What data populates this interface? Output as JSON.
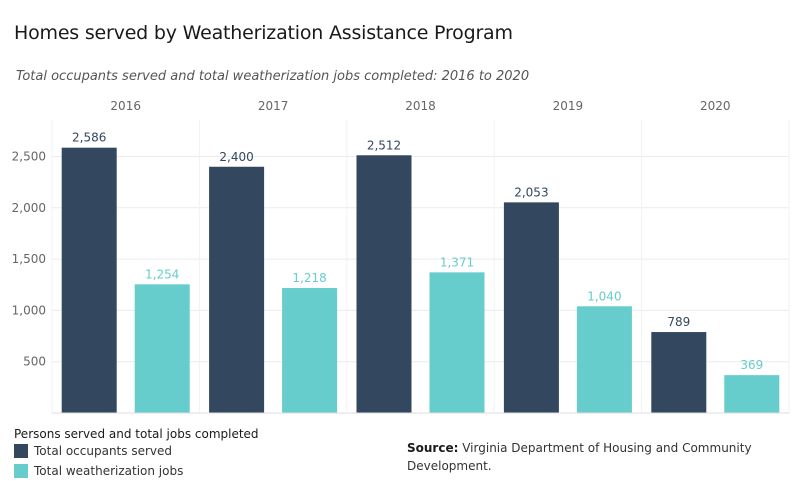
{
  "header": {
    "title": "Homes served by Weatherization Assistance Program",
    "subtitle": "Total occupants served and total weatherization jobs completed: 2016 to 2020"
  },
  "legend": {
    "title": "Persons served and total jobs completed",
    "items": [
      {
        "label": "Total occupants served",
        "color": "#33475f"
      },
      {
        "label": "Total weatherization jobs",
        "color": "#66cccc"
      }
    ]
  },
  "source": {
    "label": "Source:",
    "text": "Virginia Department of Housing and Community Development."
  },
  "chart_data": {
    "type": "bar",
    "categories": [
      "2016",
      "2017",
      "2018",
      "2019",
      "2020"
    ],
    "series": [
      {
        "name": "Total occupants served",
        "values": [
          2586,
          2400,
          2512,
          2053,
          789
        ],
        "labels": [
          "2,586",
          "2,400",
          "2,512",
          "2,053",
          "789"
        ],
        "color": "#33475f",
        "label_color": "#33475f"
      },
      {
        "name": "Total weatherization jobs",
        "values": [
          1254,
          1218,
          1371,
          1040,
          369
        ],
        "labels": [
          "1,254",
          "1,218",
          "1,371",
          "1,040",
          "369"
        ],
        "color": "#66cccc",
        "label_color": "#66cccc"
      }
    ],
    "yticks": [
      500,
      1000,
      1500,
      2000,
      2500
    ],
    "ytick_labels": [
      "500",
      "1,000",
      "1,500",
      "2,000",
      "2,500"
    ],
    "ylim": [
      0,
      2900
    ],
    "grid": true,
    "legend_position": "bottom-left"
  }
}
